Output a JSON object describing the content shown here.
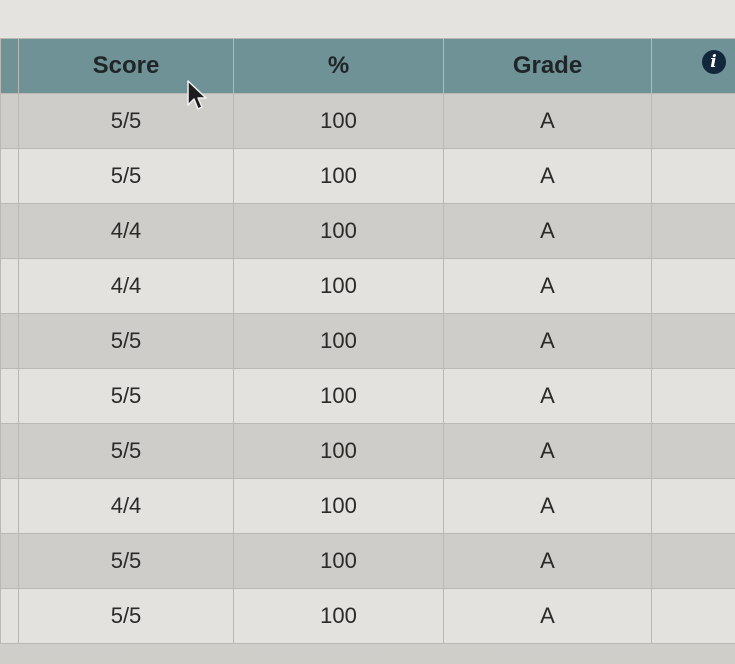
{
  "table": {
    "headers": {
      "score": "Score",
      "percent": "%",
      "grade": "Grade"
    },
    "info_icon_glyph": "i",
    "rows": [
      {
        "score": "5/5",
        "percent": "100",
        "grade": "A"
      },
      {
        "score": "5/5",
        "percent": "100",
        "grade": "A"
      },
      {
        "score": "4/4",
        "percent": "100",
        "grade": "A"
      },
      {
        "score": "4/4",
        "percent": "100",
        "grade": "A"
      },
      {
        "score": "5/5",
        "percent": "100",
        "grade": "A"
      },
      {
        "score": "5/5",
        "percent": "100",
        "grade": "A"
      },
      {
        "score": "5/5",
        "percent": "100",
        "grade": "A"
      },
      {
        "score": "4/4",
        "percent": "100",
        "grade": "A"
      },
      {
        "score": "5/5",
        "percent": "100",
        "grade": "A"
      },
      {
        "score": "5/5",
        "percent": "100",
        "grade": "A"
      }
    ]
  },
  "colors": {
    "header_bg": "#6f9296",
    "row_dark": "#cfcdca",
    "row_light": "#e3e2df",
    "info_icon": "#12283a"
  },
  "icons": {
    "info": "info-icon",
    "cursor": "mouse-pointer-icon"
  }
}
